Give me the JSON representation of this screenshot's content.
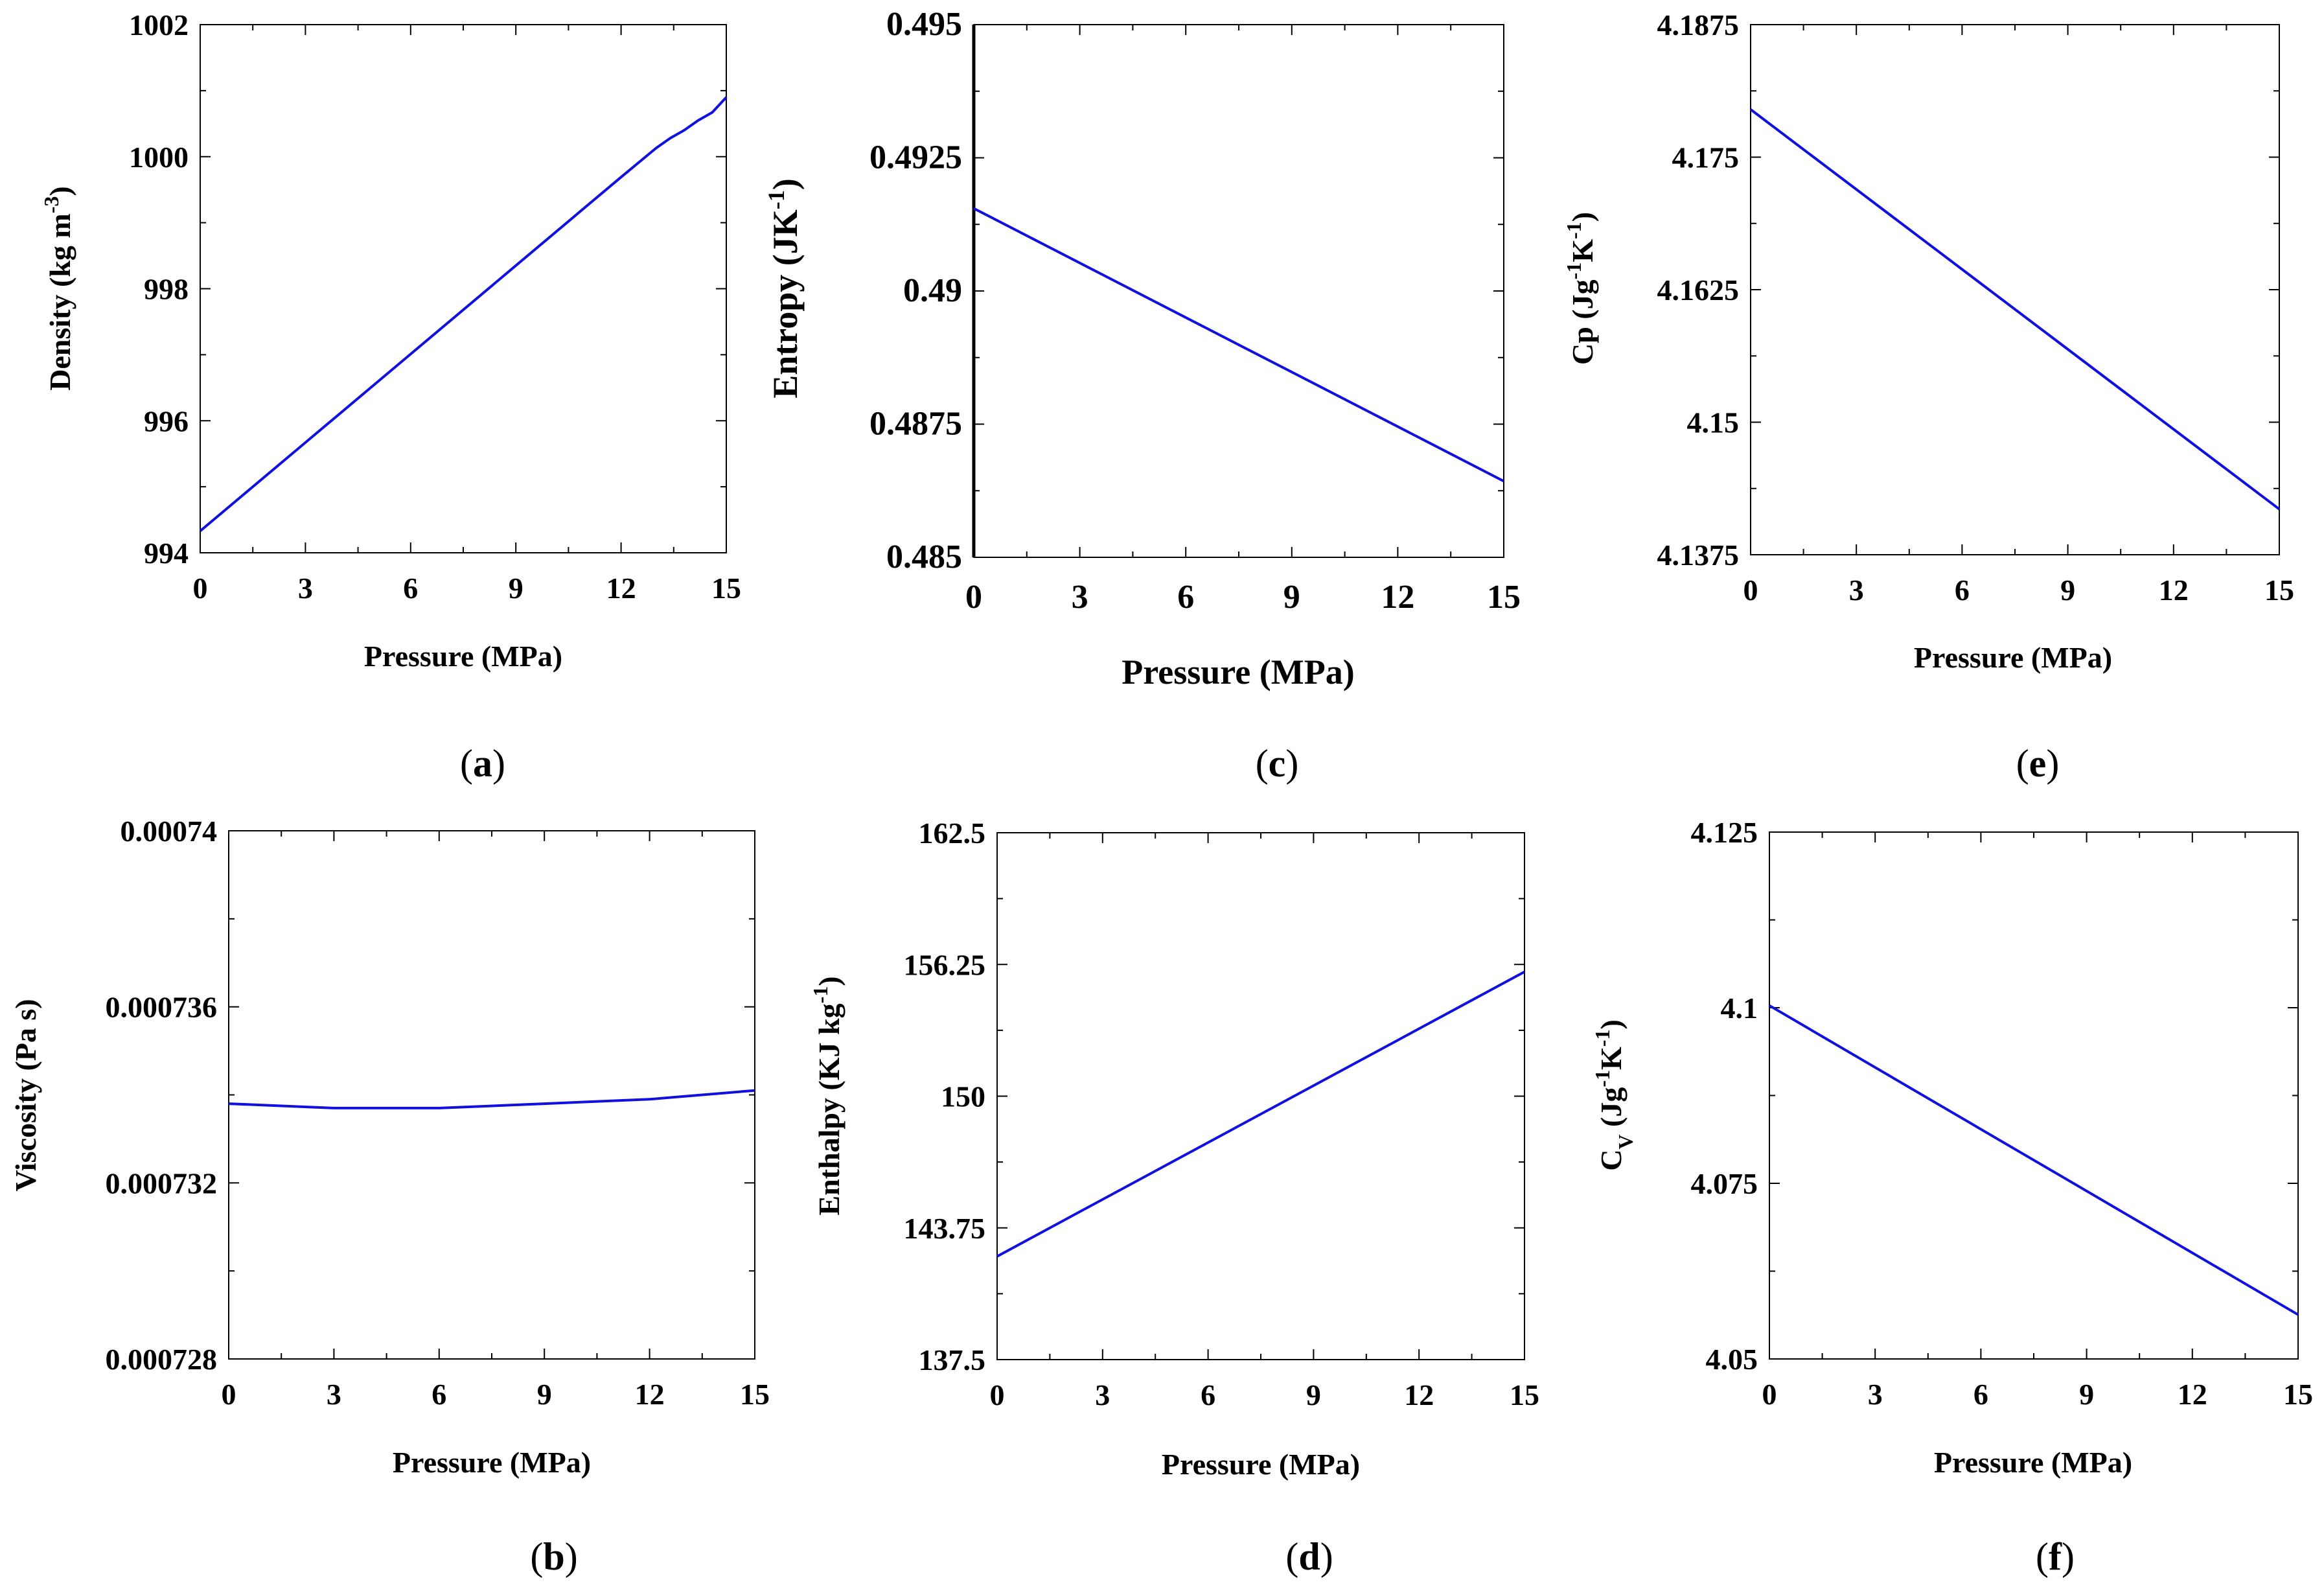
{
  "colors": {
    "line": "#1010e0",
    "axis": "#000000"
  },
  "chart_data": [
    {
      "id": "a",
      "type": "line",
      "panel_label": "a",
      "xlabel": "Pressure (MPa)",
      "ylabel": {
        "main": "Density (kg m",
        "sup": "-3",
        "tail": ")"
      },
      "xlim": [
        0,
        15
      ],
      "ylim": [
        994,
        1002
      ],
      "xticks": [
        0,
        3,
        6,
        9,
        12,
        15
      ],
      "yticks": [
        994,
        996,
        998,
        1000,
        1002
      ],
      "xtick_labels": [
        "0",
        "3",
        "6",
        "9",
        "12",
        "15"
      ],
      "ytick_labels": [
        "994",
        "996",
        "998",
        "1000",
        "1002"
      ],
      "series": [
        {
          "name": "Density",
          "x": [
            0,
            3,
            6,
            9,
            12,
            13,
            13.4,
            13.8,
            14.2,
            14.6,
            15
          ],
          "y": [
            994.33,
            995.67,
            997.01,
            998.35,
            999.69,
            1000.13,
            1000.28,
            1000.4,
            1000.55,
            1000.67,
            1000.9
          ]
        }
      ]
    },
    {
      "id": "b",
      "type": "line",
      "panel_label": "b",
      "xlabel": "Pressure (MPa)",
      "ylabel": {
        "main": "Viscosity (Pa s)",
        "sup": "",
        "tail": ""
      },
      "xlim": [
        0,
        15
      ],
      "ylim": [
        0.000728,
        0.00074
      ],
      "xticks": [
        0,
        3,
        6,
        9,
        12,
        15
      ],
      "yticks": [
        0.000728,
        0.000732,
        0.000736,
        0.00074
      ],
      "xtick_labels": [
        "0",
        "3",
        "6",
        "9",
        "12",
        "15"
      ],
      "ytick_labels": [
        "0.000728",
        "0.000732",
        "0.000736",
        "0.00074"
      ],
      "series": [
        {
          "name": "Viscosity",
          "x": [
            0,
            3,
            6,
            9,
            12,
            15
          ],
          "y": [
            0.0007338,
            0.0007337,
            0.0007337,
            0.0007338,
            0.0007339,
            0.0007341
          ]
        }
      ]
    },
    {
      "id": "c",
      "type": "line",
      "panel_label": "c",
      "xlabel": "Pressure (MPa)",
      "ylabel": {
        "main": "Entropy (JK",
        "sup": "-1",
        "tail": ")"
      },
      "xlim": [
        0,
        15
      ],
      "ylim": [
        0.485,
        0.495
      ],
      "xticks": [
        0,
        3,
        6,
        9,
        12,
        15
      ],
      "yticks": [
        0.485,
        0.4875,
        0.49,
        0.4925,
        0.495
      ],
      "xtick_labels": [
        "0",
        "3",
        "6",
        "9",
        "12",
        "15"
      ],
      "ytick_labels": [
        "0.485",
        "0.4875",
        "0.49",
        "0.4925",
        "0.495"
      ],
      "series": [
        {
          "name": "Entropy",
          "x": [
            0,
            15
          ],
          "y": [
            0.49155,
            0.48643
          ]
        }
      ]
    },
    {
      "id": "d",
      "type": "line",
      "panel_label": "d",
      "xlabel": "Pressure (MPa)",
      "ylabel": {
        "main": "Enthalpy (KJ kg",
        "sup": "-1",
        "tail": ")"
      },
      "xlim": [
        0,
        15
      ],
      "ylim": [
        137.5,
        162.5
      ],
      "xticks": [
        0,
        3,
        6,
        9,
        12,
        15
      ],
      "yticks": [
        137.5,
        143.75,
        150,
        156.25,
        162.5
      ],
      "xtick_labels": [
        "0",
        "3",
        "6",
        "9",
        "12",
        "15"
      ],
      "ytick_labels": [
        "137.5",
        "143.75",
        "150",
        "156.25",
        "162.5"
      ],
      "series": [
        {
          "name": "Enthalpy",
          "x": [
            0,
            15
          ],
          "y": [
            142.4,
            155.9
          ]
        }
      ]
    },
    {
      "id": "e",
      "type": "line",
      "panel_label": "e",
      "xlabel": "Pressure (MPa)",
      "ylabel": {
        "main": "Cp (Jg",
        "sup": "-1",
        "mid": "K",
        "sup2": "-1",
        "tail": ")"
      },
      "xlim": [
        0,
        15
      ],
      "ylim": [
        4.1375,
        4.1875
      ],
      "xticks": [
        0,
        3,
        6,
        9,
        12,
        15
      ],
      "yticks": [
        4.1375,
        4.15,
        4.1625,
        4.175,
        4.1875
      ],
      "xtick_labels": [
        "0",
        "3",
        "6",
        "9",
        "12",
        "15"
      ],
      "ytick_labels": [
        "4.1375",
        "4.15",
        "4.1625",
        "4.175",
        "4.1875"
      ],
      "series": [
        {
          "name": "Cp",
          "x": [
            0,
            15
          ],
          "y": [
            4.1795,
            4.1418
          ]
        }
      ]
    },
    {
      "id": "f",
      "type": "line",
      "panel_label": "f",
      "xlabel": "Pressure (MPa)",
      "ylabel": {
        "main": "C",
        "sub": "V",
        "mid": " (Jg",
        "sup": "-1",
        "mid2": "K",
        "sup2": "-1",
        "tail": ")"
      },
      "xlim": [
        0,
        15
      ],
      "ylim": [
        4.05,
        4.125
      ],
      "xticks": [
        0,
        3,
        6,
        9,
        12,
        15
      ],
      "yticks": [
        4.05,
        4.075,
        4.1,
        4.125
      ],
      "xtick_labels": [
        "0",
        "3",
        "6",
        "9",
        "12",
        "15"
      ],
      "ytick_labels": [
        "4.05",
        "4.075",
        "4.1",
        "4.125"
      ],
      "series": [
        {
          "name": "Cv",
          "x": [
            0,
            15
          ],
          "y": [
            4.1003,
            4.0563
          ]
        }
      ]
    }
  ]
}
